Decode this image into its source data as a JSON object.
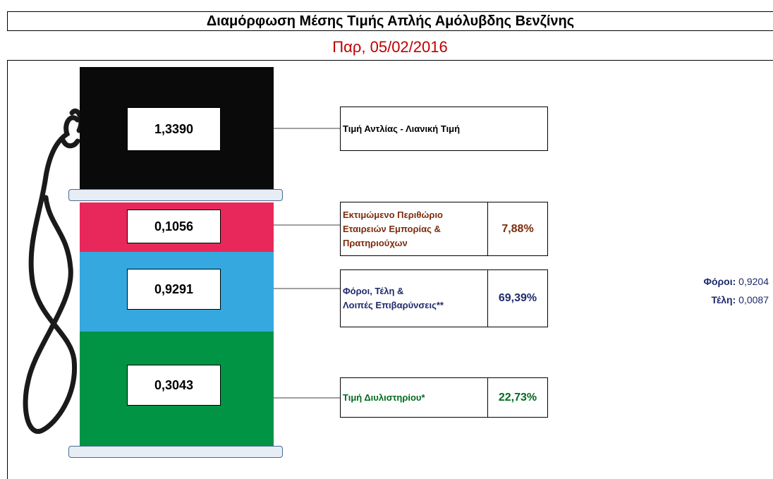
{
  "header": {
    "title": "Διαμόρφωση Μέσης Τιμής Απλής Αμόλυβδης Βενζίνης",
    "date": "Παρ, 05/02/2016"
  },
  "components": [
    {
      "value": "1,3390",
      "label": "Τιμή Αντλίας - Λιανική Τιμή",
      "percent": "",
      "color": "#0a0a0a",
      "label_color": "#000000"
    },
    {
      "value": "0,1056",
      "label_lines": [
        "Εκτιμώμενο Περιθώριο",
        "Εταιρειών Εμπορίας &",
        "Πρατηριούχων"
      ],
      "percent": "7,88%",
      "color": "#e8285a",
      "label_color": "#7b2c0c"
    },
    {
      "value": "0,9291",
      "label_lines": [
        "Φόροι, Τέλη &",
        "Λοιπές Επιβαρύνσεις**"
      ],
      "percent": "69,39%",
      "color": "#35a8e0",
      "label_color": "#1f2a6b"
    },
    {
      "value": "0,3043",
      "label": "Τιμή Διυλιστηρίου*",
      "percent": "22,73%",
      "color": "#009444",
      "label_color": "#006b1f"
    }
  ],
  "side_breakdown": {
    "taxes_label": "Φόροι:",
    "taxes_value": "0,9204",
    "fees_label": "Τέλη:",
    "fees_value": "0,0087"
  }
}
